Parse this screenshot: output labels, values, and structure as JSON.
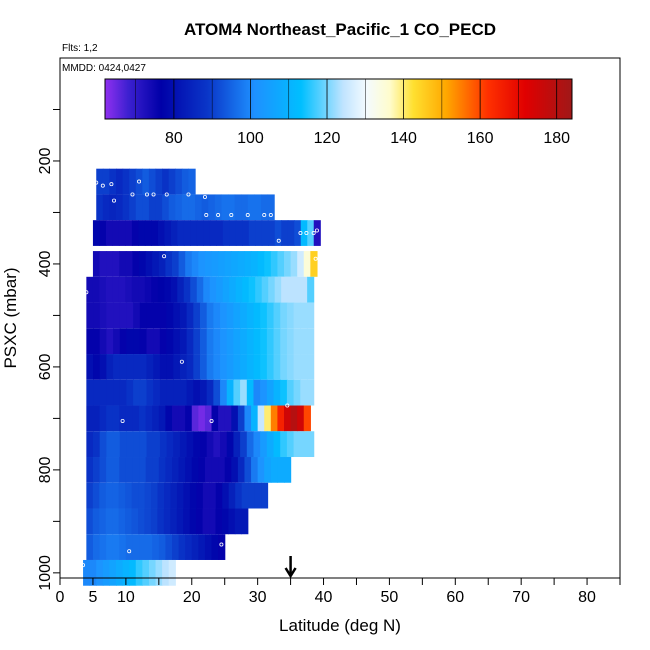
{
  "chart_data": {
    "type": "heatmap",
    "title": "ATOM4 Northeast_Pacific_1 CO_PECD",
    "flights_note": "Flts: 1,2",
    "dates_note": "MMDD: 0424,0427",
    "xlabel": "Latitude (deg N)",
    "ylabel": "PSXC (mbar)",
    "xlim": [
      0,
      85
    ],
    "ylim": [
      1010,
      0
    ],
    "x_ticks": [
      0,
      5,
      10,
      20,
      30,
      40,
      50,
      60,
      70,
      80
    ],
    "x_tick_labels": [
      "0",
      "5",
      "10",
      "20",
      "30",
      "40",
      "50",
      "60",
      "70",
      "80"
    ],
    "y_ticks": [
      200,
      400,
      600,
      800,
      1000
    ],
    "y_tick_labels": [
      "200",
      "400",
      "600",
      "800",
      "1000"
    ],
    "colorbar": {
      "min": 62,
      "max": 184,
      "ticks": [
        80,
        100,
        120,
        140,
        160,
        180
      ],
      "tick_labels": [
        "80",
        "100",
        "120",
        "140",
        "160",
        "180"
      ]
    },
    "marker_latitude": 35,
    "rows": [
      {
        "p": 240,
        "x0": 5.5,
        "x1": 20.5,
        "values": [
          90,
          90,
          88,
          86,
          88,
          90,
          92,
          94,
          92,
          90,
          88,
          90,
          92,
          94,
          95
        ]
      },
      {
        "p": 290,
        "x0": 5.5,
        "x1": 32.5,
        "values": [
          88,
          86,
          85,
          86,
          88,
          90,
          92,
          92,
          90,
          90,
          92,
          94,
          95,
          96,
          96,
          95,
          94,
          95,
          96,
          97,
          97,
          96,
          96,
          97,
          97,
          96,
          96
        ]
      },
      {
        "p": 340,
        "x0": 5,
        "x1": 39.5,
        "values": [
          78,
          76,
          74,
          74,
          74,
          74,
          76,
          78,
          78,
          78,
          80,
          82,
          84,
          86,
          86,
          86,
          86,
          86,
          86,
          86,
          88,
          88,
          88,
          88,
          90,
          90,
          90,
          90,
          92,
          90,
          90,
          92,
          112,
          118,
          72
        ]
      },
      {
        "p": 400,
        "x0": 5,
        "x1": 39,
        "values": [
          74,
          72,
          72,
          72,
          74,
          74,
          76,
          78,
          80,
          82,
          84,
          88,
          90,
          94,
          98,
          100,
          102,
          103,
          104,
          105,
          106,
          107,
          108,
          109,
          110,
          112,
          114,
          116,
          118,
          120,
          122,
          126,
          135,
          145
        ]
      },
      {
        "p": 450,
        "x0": 4,
        "x1": 38.5,
        "values": [
          74,
          74,
          73,
          72,
          72,
          72,
          73,
          74,
          74,
          75,
          76,
          77,
          78,
          80,
          84,
          88,
          92,
          96,
          100,
          102,
          104,
          106,
          108,
          110,
          112,
          114,
          116,
          118,
          120,
          122,
          124,
          124,
          124,
          124,
          118
        ]
      },
      {
        "p": 500,
        "x0": 4,
        "x1": 38.5,
        "values": [
          74,
          74,
          73,
          72,
          72,
          72,
          72,
          74,
          76,
          76,
          76,
          76,
          78,
          80,
          82,
          86,
          90,
          94,
          98,
          100,
          102,
          104,
          106,
          108,
          110,
          112,
          114,
          116,
          118,
          120,
          121,
          122,
          122,
          122
        ]
      },
      {
        "p": 550,
        "x0": 4,
        "x1": 38.5,
        "values": [
          76,
          76,
          74,
          72,
          74,
          76,
          78,
          78,
          76,
          74,
          74,
          76,
          78,
          80,
          82,
          86,
          90,
          94,
          98,
          100,
          102,
          104,
          106,
          108,
          110,
          112,
          114,
          116,
          118,
          120,
          121,
          122,
          122,
          122
        ]
      },
      {
        "p": 600,
        "x0": 4,
        "x1": 38.5,
        "values": [
          80,
          78,
          80,
          84,
          86,
          86,
          86,
          86,
          86,
          84,
          82,
          80,
          80,
          82,
          84,
          86,
          90,
          94,
          98,
          100,
          102,
          104,
          106,
          108,
          110,
          112,
          114,
          116,
          118,
          120,
          121,
          122,
          122,
          122
        ]
      },
      {
        "p": 650,
        "x0": 4,
        "x1": 38.5,
        "values": [
          86,
          86,
          86,
          86,
          86,
          86,
          88,
          90,
          90,
          88,
          86,
          84,
          84,
          84,
          84,
          82,
          80,
          82,
          86,
          92,
          100,
          110,
          118,
          122,
          112,
          100,
          102,
          106,
          110,
          114,
          118,
          120,
          122,
          122
        ]
      },
      {
        "p": 700,
        "x0": 4,
        "x1": 38,
        "values": [
          84,
          84,
          86,
          88,
          88,
          86,
          86,
          86,
          88,
          86,
          84,
          82,
          78,
          74,
          74,
          76,
          66,
          64,
          66,
          76,
          72,
          72,
          80,
          90,
          100,
          110,
          125,
          140,
          155,
          165,
          175,
          180,
          175,
          160
        ]
      },
      {
        "p": 750,
        "x0": 4,
        "x1": 38.5,
        "values": [
          86,
          88,
          92,
          94,
          94,
          92,
          92,
          92,
          92,
          90,
          90,
          88,
          86,
          84,
          82,
          80,
          78,
          76,
          74,
          72,
          74,
          78,
          84,
          90,
          96,
          100,
          104,
          108,
          112,
          116,
          118,
          120,
          120,
          120
        ]
      },
      {
        "p": 800,
        "x0": 4,
        "x1": 35,
        "values": [
          88,
          90,
          92,
          94,
          94,
          92,
          92,
          92,
          92,
          90,
          90,
          88,
          86,
          84,
          82,
          80,
          78,
          76,
          74,
          74,
          74,
          76,
          80,
          86,
          92,
          98,
          102,
          106,
          108,
          108,
          108
        ]
      },
      {
        "p": 850,
        "x0": 4,
        "x1": 31.5,
        "values": [
          90,
          92,
          94,
          95,
          95,
          94,
          93,
          92,
          92,
          91,
          90,
          88,
          86,
          84,
          82,
          80,
          78,
          76,
          74,
          74,
          76,
          80,
          84,
          88,
          90,
          90,
          90,
          90
        ]
      },
      {
        "p": 900,
        "x0": 4,
        "x1": 28.5,
        "values": [
          92,
          94,
          95,
          96,
          96,
          95,
          94,
          93,
          92,
          91,
          90,
          88,
          86,
          84,
          82,
          80,
          78,
          76,
          74,
          74,
          76,
          78,
          80,
          82,
          82
        ]
      },
      {
        "p": 950,
        "x0": 4,
        "x1": 25,
        "values": [
          94,
          96,
          97,
          98,
          98,
          97,
          96,
          96,
          96,
          96,
          95,
          94,
          92,
          90,
          88,
          86,
          84,
          82,
          80,
          78,
          76
        ]
      },
      {
        "p": 1000,
        "x0": 3.5,
        "x1": 17.5,
        "values": [
          100,
          100,
          102,
          104,
          106,
          108,
          110,
          112,
          116,
          118,
          120,
          122,
          124,
          126
        ]
      }
    ],
    "sample_points": [
      {
        "lat": 5.5,
        "p": 242
      },
      {
        "lat": 6.5,
        "p": 248
      },
      {
        "lat": 7.8,
        "p": 245
      },
      {
        "lat": 12,
        "p": 240
      },
      {
        "lat": 8.2,
        "p": 277
      },
      {
        "lat": 11,
        "p": 265
      },
      {
        "lat": 13.2,
        "p": 265
      },
      {
        "lat": 14.2,
        "p": 265
      },
      {
        "lat": 16.2,
        "p": 265
      },
      {
        "lat": 19.5,
        "p": 265
      },
      {
        "lat": 22,
        "p": 270
      },
      {
        "lat": 22.2,
        "p": 305
      },
      {
        "lat": 24,
        "p": 305
      },
      {
        "lat": 26,
        "p": 305
      },
      {
        "lat": 28.5,
        "p": 305
      },
      {
        "lat": 31,
        "p": 305
      },
      {
        "lat": 32,
        "p": 305
      },
      {
        "lat": 33.2,
        "p": 355
      },
      {
        "lat": 36.5,
        "p": 340
      },
      {
        "lat": 37.4,
        "p": 340
      },
      {
        "lat": 38.5,
        "p": 340
      },
      {
        "lat": 39,
        "p": 335
      },
      {
        "lat": 15.8,
        "p": 385
      },
      {
        "lat": 38.8,
        "p": 390
      },
      {
        "lat": 4,
        "p": 455
      },
      {
        "lat": 18.5,
        "p": 590
      },
      {
        "lat": 9.5,
        "p": 705
      },
      {
        "lat": 23,
        "p": 705
      },
      {
        "lat": 34.5,
        "p": 675
      },
      {
        "lat": 10.5,
        "p": 958
      },
      {
        "lat": 24.5,
        "p": 945
      },
      {
        "lat": 3.5,
        "p": 985
      }
    ]
  }
}
